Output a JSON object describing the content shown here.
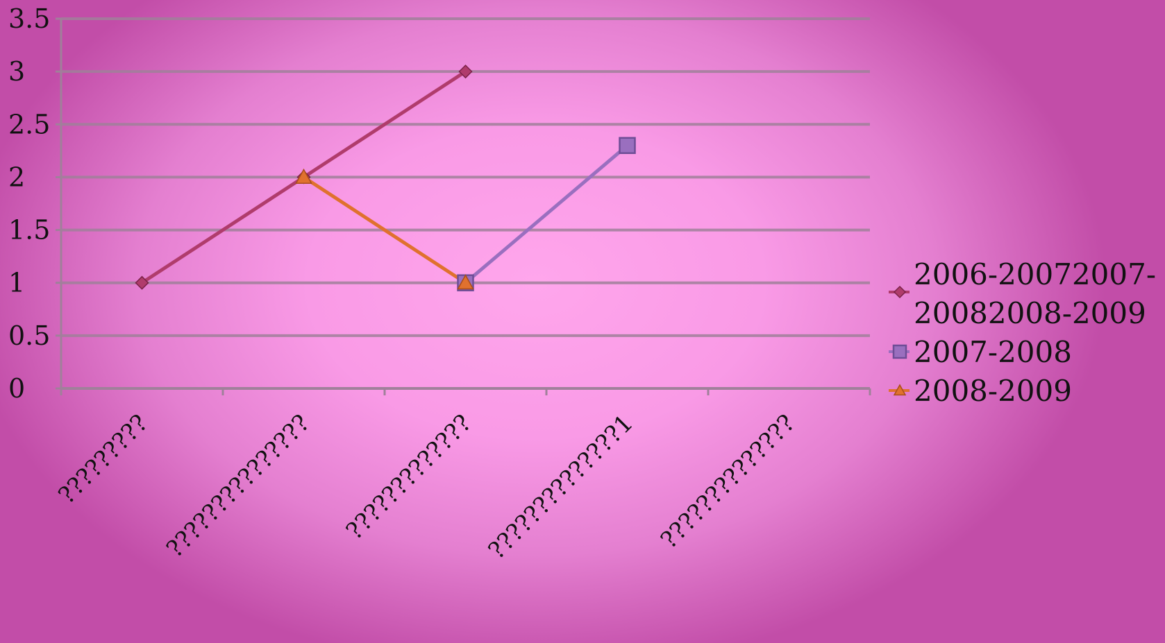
{
  "chart_data": {
    "type": "line",
    "categories": [
      "?????????",
      "???????????????",
      "?????????????",
      "??????????????1",
      "??????????????"
    ],
    "series": [
      {
        "name": "2006-20072007-20082008-2009",
        "values": [
          1,
          2,
          3,
          null,
          null
        ],
        "color": "#b03c6c",
        "marker": "diamond"
      },
      {
        "name": "2007-2008",
        "values": [
          null,
          null,
          1,
          2.3,
          null
        ],
        "color": "#9a6fbf",
        "marker": "square"
      },
      {
        "name": "2008-2009",
        "values": [
          null,
          2,
          1,
          null,
          null
        ],
        "color": "#e0712e",
        "marker": "triangle"
      }
    ],
    "y_ticks": [
      "0",
      "0.5",
      "1",
      "1.5",
      "2",
      "2.5",
      "3",
      "3.5"
    ],
    "ylim": [
      0,
      3.5
    ],
    "grid": true,
    "legend_position": "right"
  }
}
